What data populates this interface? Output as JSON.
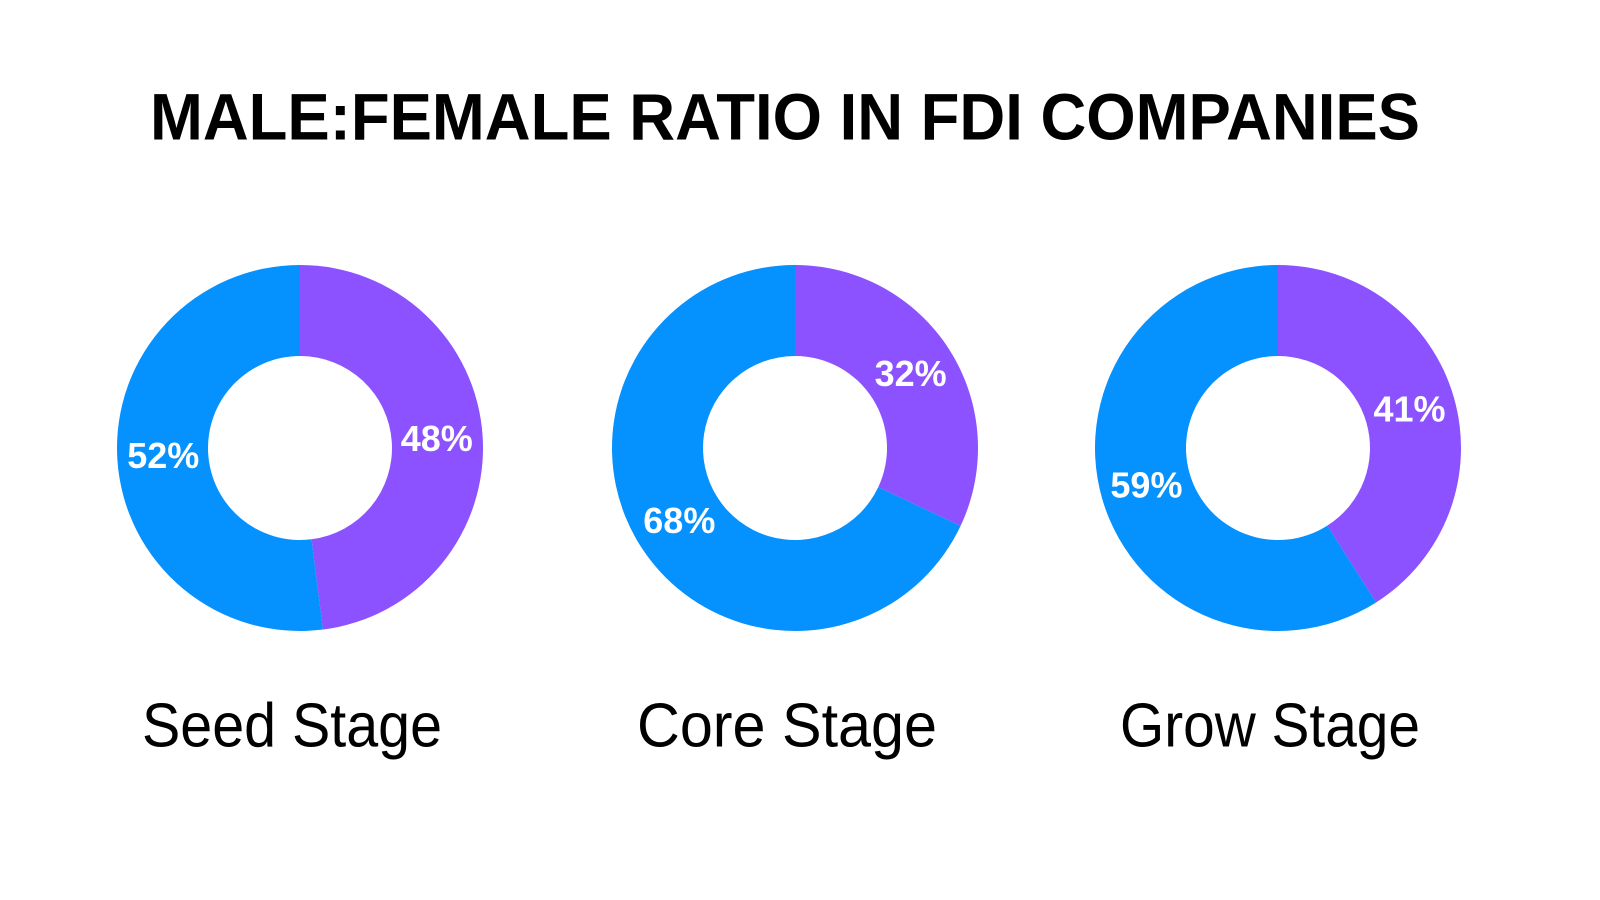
{
  "title": "MALE:FEMALE RATIO IN FDI COMPANIES",
  "chart_data": [
    {
      "type": "donut",
      "title": "Seed Stage",
      "values": [
        48,
        52
      ],
      "value_labels": [
        "48%",
        "52%"
      ],
      "colors": [
        "#8c52ff",
        "#0591fe"
      ]
    },
    {
      "type": "donut",
      "title": "Core Stage",
      "values": [
        32,
        68
      ],
      "value_labels": [
        "32%",
        "68%"
      ],
      "colors": [
        "#8c52ff",
        "#0591fe"
      ]
    },
    {
      "type": "donut",
      "title": "Grow Stage",
      "values": [
        41,
        59
      ],
      "value_labels": [
        "41%",
        "59%"
      ],
      "colors": [
        "#8c52ff",
        "#0591fe"
      ]
    }
  ]
}
